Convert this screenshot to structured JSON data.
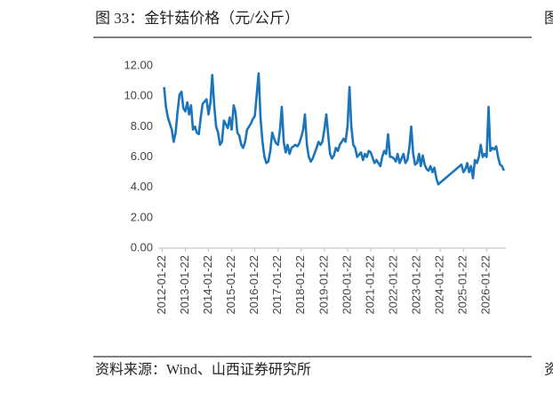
{
  "chart_data": {
    "type": "line",
    "title": "图 33：金针菇价格（元/公斤）",
    "source": "资料来源：Wind、山西证券研究所",
    "neighbor_fragments": [
      "图",
      "资"
    ],
    "color": "#1b75bc",
    "x": [
      "2012-02-22",
      "2012-03-22",
      "2012-04-22",
      "2012-06-22",
      "2012-07-22",
      "2012-08-22",
      "2012-09-22",
      "2012-10-22",
      "2012-11-22",
      "2012-12-22",
      "2013-01-22",
      "2013-02-22",
      "2013-03-22",
      "2013-04-22",
      "2013-05-22",
      "2013-06-22",
      "2013-07-22",
      "2013-08-22",
      "2013-09-22",
      "2013-10-22",
      "2013-12-22",
      "2014-01-22",
      "2014-02-22",
      "2014-03-22",
      "2014-04-22",
      "2014-05-22",
      "2014-06-22",
      "2014-07-22",
      "2014-08-22",
      "2014-09-22",
      "2014-11-22",
      "2014-12-22",
      "2015-01-22",
      "2015-02-22",
      "2015-03-22",
      "2015-04-22",
      "2015-05-22",
      "2015-06-22",
      "2015-07-22",
      "2015-08-22",
      "2015-09-22",
      "2015-11-22",
      "2015-12-22",
      "2016-01-22",
      "2016-03-22",
      "2016-04-22",
      "2016-05-22",
      "2016-06-22",
      "2016-07-22",
      "2016-08-22",
      "2016-09-22",
      "2016-10-22",
      "2016-11-22",
      "2016-12-22",
      "2017-01-22",
      "2017-02-22",
      "2017-03-22",
      "2017-04-22",
      "2017-05-22",
      "2017-06-22",
      "2017-07-22",
      "2017-08-22",
      "2017-10-22",
      "2017-11-22",
      "2017-12-22",
      "2018-01-22",
      "2018-02-22",
      "2018-03-22",
      "2018-04-22",
      "2018-05-22",
      "2018-06-22",
      "2018-07-22",
      "2018-09-22",
      "2018-10-22",
      "2018-11-22",
      "2018-12-22",
      "2019-01-22",
      "2019-02-22",
      "2019-03-22",
      "2019-04-22",
      "2019-05-22",
      "2019-06-22",
      "2019-07-22",
      "2019-08-22",
      "2019-09-22",
      "2019-11-22",
      "2019-12-22",
      "2020-01-22",
      "2020-02-22",
      "2020-03-22",
      "2020-04-22",
      "2020-05-22",
      "2020-06-22",
      "2020-08-22",
      "2020-09-22",
      "2020-10-22",
      "2020-11-22",
      "2020-12-22",
      "2021-01-22",
      "2021-03-22",
      "2021-04-22",
      "2021-05-22",
      "2021-06-22",
      "2021-07-22",
      "2021-08-22",
      "2021-09-22",
      "2021-10-22",
      "2021-11-22",
      "2021-12-22",
      "2022-01-22",
      "2022-02-22",
      "2022-03-22",
      "2022-04-22",
      "2022-05-22",
      "2022-06-22",
      "2022-07-22",
      "2022-08-22",
      "2022-09-22",
      "2022-10-22",
      "2022-11-22",
      "2022-12-22",
      "2023-01-22",
      "2023-02-22",
      "2023-03-22",
      "2023-04-22",
      "2023-05-22",
      "2023-06-22",
      "2023-07-22",
      "2023-08-22",
      "2023-09-22",
      "2023-10-22",
      "2023-11-22",
      "2023-12-22",
      "2024-12-22",
      "2025-01-22",
      "2025-02-22",
      "2025-03-22",
      "2025-04-22",
      "2025-05-22",
      "2025-06-22",
      "2025-07-22",
      "2025-08-22",
      "2025-09-22",
      "2025-10-22",
      "2025-11-22",
      "2025-12-22",
      "2026-01-22",
      "2026-02-22",
      "2026-03-22",
      "2026-04-22",
      "2026-05-22",
      "2026-06-22",
      "2026-07-22",
      "2026-08-22",
      "2026-09-22",
      "2026-10-22"
    ],
    "values": [
      10.6,
      9.3,
      8.6,
      7.8,
      7.0,
      7.6,
      9.0,
      10.1,
      10.3,
      9.2,
      9.0,
      9.6,
      8.8,
      9.4,
      7.8,
      8.0,
      7.6,
      7.5,
      8.6,
      9.5,
      9.8,
      8.8,
      9.6,
      11.4,
      9.4,
      8.0,
      7.6,
      6.8,
      7.0,
      8.4,
      7.9,
      8.6,
      7.8,
      9.4,
      9.0,
      7.6,
      7.4,
      6.8,
      6.6,
      7.0,
      7.8,
      8.2,
      8.5,
      8.7,
      11.5,
      8.5,
      7.0,
      6.0,
      5.6,
      5.7,
      6.4,
      7.6,
      7.2,
      6.9,
      6.8,
      7.8,
      9.3,
      7.0,
      6.3,
      6.8,
      6.2,
      6.6,
      6.8,
      6.7,
      6.9,
      7.3,
      7.8,
      8.8,
      6.8,
      6.0,
      5.7,
      5.9,
      6.6,
      7.0,
      6.8,
      7.0,
      7.8,
      8.8,
      7.5,
      6.2,
      5.9,
      6.1,
      6.6,
      6.4,
      6.8,
      7.2,
      7.0,
      8.0,
      10.6,
      8.0,
      6.8,
      6.6,
      6.0,
      6.3,
      5.8,
      6.2,
      6.0,
      6.4,
      6.3,
      5.6,
      5.8,
      5.6,
      5.4,
      6.0,
      6.4,
      6.2,
      7.5,
      6.0,
      6.0,
      5.9,
      5.7,
      6.2,
      5.6,
      5.9,
      6.2,
      5.6,
      5.8,
      6.6,
      8.0,
      6.2,
      5.5,
      5.6,
      6.2,
      5.4,
      6.1,
      5.5,
      5.2,
      5.1,
      5.4,
      5.0,
      5.3,
      4.6,
      4.2,
      5.5,
      5.0,
      5.2,
      5.6,
      5.0,
      5.4,
      4.6,
      5.8,
      5.6,
      6.0,
      6.8,
      6.0,
      6.2,
      6.0,
      9.3,
      6.4,
      6.6,
      6.5,
      6.7,
      6.0,
      5.5,
      5.4,
      5.1
    ],
    "xlim": [
      "2011-11-22",
      "2026-11-22"
    ],
    "xticks": [
      "2012-01-22",
      "2013-01-22",
      "2014-01-22",
      "2015-01-22",
      "2016-01-22",
      "2017-01-22",
      "2018-01-22",
      "2019-01-22",
      "2020-01-22",
      "2021-01-22",
      "2022-01-22",
      "2023-01-22",
      "2024-01-22",
      "2025-01-22",
      "2026-01-22"
    ],
    "ylim": [
      0,
      12
    ],
    "yticks": [
      {
        "value": 0,
        "label": "0.00"
      },
      {
        "value": 2,
        "label": "2.00"
      },
      {
        "value": 4,
        "label": "4.00"
      },
      {
        "value": 6,
        "label": "6.00"
      },
      {
        "value": 8,
        "label": "8.00"
      },
      {
        "value": 10,
        "label": "10.00"
      },
      {
        "value": 12,
        "label": "12.00"
      }
    ],
    "grid": false
  }
}
